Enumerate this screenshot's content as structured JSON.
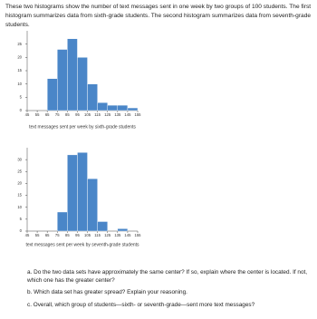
{
  "intro": "These two histograms show the number of text messages sent in one week by two groups of 100 students. The first histogram summarizes data from sixth-grade students. The second histogram summarizes data from seventh-grade students.",
  "chart_data": [
    {
      "type": "histogram",
      "xlabel": "text messages sent per week by sixth-grade students",
      "bins": [
        45,
        55,
        65,
        75,
        85,
        95,
        105,
        115,
        125,
        135,
        145,
        155
      ],
      "values": [
        0,
        0,
        12,
        23,
        27,
        20,
        10,
        3,
        2,
        2,
        1
      ],
      "color": "#4a86c8",
      "ylim": [
        0,
        30
      ],
      "yticks": [
        0,
        5,
        10,
        15,
        20,
        25
      ]
    },
    {
      "type": "histogram",
      "xlabel": "text messages sent per week by seventh-grade students",
      "bins": [
        45,
        55,
        65,
        75,
        85,
        95,
        105,
        115,
        125,
        135,
        145,
        155
      ],
      "values": [
        0,
        0,
        0,
        8,
        32,
        33,
        22,
        4,
        0,
        1,
        0
      ],
      "color": "#4a86c8",
      "ylim": [
        0,
        35
      ],
      "yticks": [
        0,
        5,
        10,
        15,
        20,
        25,
        30
      ]
    }
  ],
  "questions": [
    "a. Do the two data sets have approximately the same center? If so, explain where the center is located. If not, which one has the greater center?",
    "b. Which data set has greater spread? Explain your reasoning.",
    "c. Overall, which group of students—sixth- or seventh-grade—sent more text messages?"
  ]
}
